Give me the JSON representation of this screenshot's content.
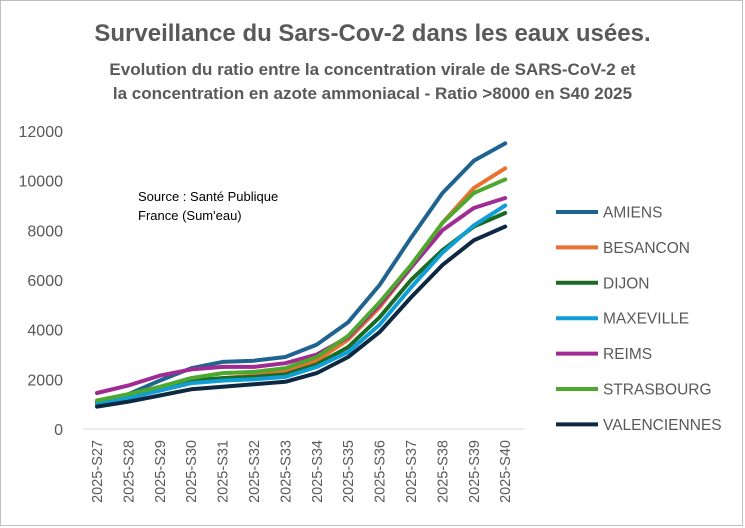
{
  "chart_data": {
    "type": "line",
    "title": "Surveillance du Sars-Cov-2 dans les eaux usées.",
    "subtitle_line1": "Evolution du ratio entre la concentration virale de SARS-CoV-2 et",
    "subtitle_line2": "la concentration en azote ammoniacal - Ratio >8000 en S40 2025",
    "source_line1": "Source : Santé Publique",
    "source_line2": "France (Sum'eau)",
    "xlabel": "",
    "ylabel": "",
    "ylim": [
      0,
      12000
    ],
    "yticks": [
      "12000",
      "10000",
      "8000",
      "6000",
      "4000",
      "2000",
      "0"
    ],
    "ytick_values": [
      12000,
      10000,
      8000,
      6000,
      4000,
      2000,
      0
    ],
    "grid": false,
    "legend_position": "right",
    "categories": [
      "2025-S27",
      "2025-S28",
      "2025-S29",
      "2025-S30",
      "2025-S31",
      "2025-S32",
      "2025-S33",
      "2025-S34",
      "2025-S35",
      "2025-S36",
      "2025-S37",
      "2025-S38",
      "2025-S39",
      "2025-S40"
    ],
    "series": [
      {
        "name": "AMIENS",
        "color": "#1f6391",
        "values": [
          1100,
          1400,
          1950,
          2450,
          2700,
          2750,
          2900,
          3400,
          4300,
          5800,
          7700,
          9500,
          10800,
          11500
        ]
      },
      {
        "name": "BESANCON",
        "color": "#e97132",
        "values": [
          1100,
          1300,
          1550,
          1850,
          2050,
          2150,
          2300,
          2750,
          3600,
          4900,
          6500,
          8300,
          9700,
          10500
        ]
      },
      {
        "name": "DIJON",
        "color": "#196b24",
        "values": [
          1050,
          1300,
          1600,
          1950,
          2050,
          2100,
          2200,
          2600,
          3300,
          4500,
          6000,
          7200,
          8150,
          8700
        ]
      },
      {
        "name": "MAXEVILLE",
        "color": "#0f9ed5",
        "values": [
          1000,
          1250,
          1550,
          1850,
          1950,
          2000,
          2100,
          2500,
          3100,
          4200,
          5700,
          7100,
          8200,
          9000
        ]
      },
      {
        "name": "REIMS",
        "color": "#a02b93",
        "values": [
          1450,
          1750,
          2150,
          2400,
          2500,
          2500,
          2650,
          3000,
          3700,
          5000,
          6500,
          8000,
          8900,
          9300
        ]
      },
      {
        "name": "STRASBOURG",
        "color": "#4ea72e",
        "values": [
          1150,
          1400,
          1700,
          2050,
          2250,
          2300,
          2450,
          2900,
          3750,
          5100,
          6600,
          8300,
          9500,
          10050
        ]
      },
      {
        "name": "VALENCIENNES",
        "color": "#0e2841",
        "values": [
          900,
          1100,
          1350,
          1600,
          1700,
          1800,
          1900,
          2250,
          2900,
          3900,
          5300,
          6600,
          7600,
          8150
        ]
      }
    ]
  }
}
